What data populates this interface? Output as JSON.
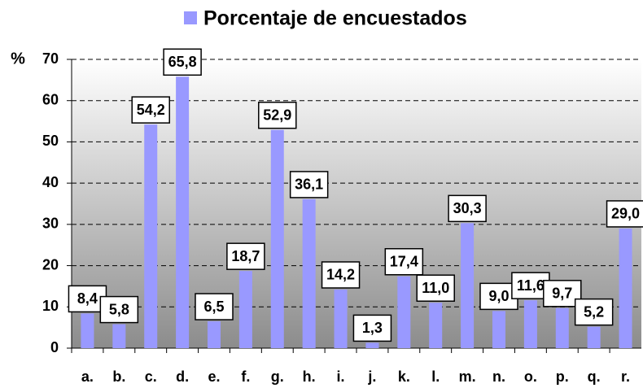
{
  "chart_data": {
    "type": "bar",
    "ylabel": "%",
    "categories": [
      "a.",
      "b.",
      "c.",
      "d.",
      "e.",
      "f.",
      "g.",
      "h.",
      "i.",
      "j.",
      "k.",
      "l.",
      "m.",
      "n.",
      "o.",
      "p.",
      "q.",
      "r."
    ],
    "series": [
      {
        "name": "Porcentaje de encuestados",
        "color": "#9999ff",
        "values": [
          8.4,
          5.8,
          54.2,
          65.8,
          6.5,
          18.7,
          52.9,
          36.1,
          14.2,
          1.3,
          17.4,
          11.0,
          30.3,
          9.0,
          11.6,
          9.7,
          5.2,
          29.0
        ],
        "value_labels": [
          "8,4",
          "5,8",
          "54,2",
          "65,8",
          "6,5",
          "18,7",
          "52,9",
          "36,1",
          "14,2",
          "1,3",
          "17,4",
          "11,0",
          "30,3",
          "9,0",
          "11,6",
          "9,7",
          "5,2",
          "29,0"
        ]
      }
    ],
    "ylim": [
      0,
      70
    ],
    "yticks": [
      0,
      10,
      20,
      30,
      40,
      50,
      60,
      70
    ],
    "grid": true,
    "legend": "top"
  }
}
